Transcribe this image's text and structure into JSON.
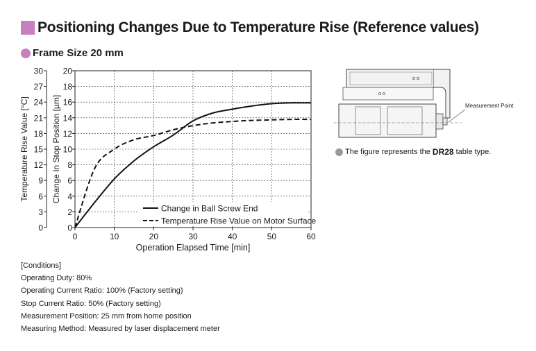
{
  "header": {
    "title": "Positioning Changes Due to Temperature Rise (Reference values)",
    "subtitle": "Frame Size 20 mm",
    "accent_color": "#c77fbd"
  },
  "chart_data": {
    "type": "line",
    "x": [
      0,
      5,
      10,
      15,
      20,
      25,
      30,
      35,
      40,
      45,
      50,
      55,
      60
    ],
    "xlabel": "Operation Elapsed Time [min]",
    "xlim": [
      0,
      60
    ],
    "x_ticks": [
      "0",
      "10",
      "20",
      "30",
      "40",
      "50",
      "60"
    ],
    "y_left": {
      "label": "Temperature Rise Value [°C]",
      "lim": [
        0,
        30
      ],
      "ticks": [
        "0",
        "3",
        "6",
        "9",
        "12",
        "15",
        "18",
        "21",
        "24",
        "27",
        "30"
      ]
    },
    "y_right": {
      "label": "Change In Stop Position [µm]",
      "lim": [
        0,
        20
      ],
      "ticks": [
        "0",
        "2",
        "4",
        "6",
        "8",
        "10",
        "12",
        "14",
        "16",
        "18",
        "20"
      ]
    },
    "series": [
      {
        "name": "Change in Ball Screw End",
        "axis": "right",
        "style": "solid",
        "values": [
          0,
          3.2,
          6.2,
          8.5,
          10.3,
          11.8,
          13.6,
          14.6,
          15.1,
          15.5,
          15.8,
          15.9,
          15.9
        ]
      },
      {
        "name": "Temperature Rise Value on Motor Surface",
        "axis": "left",
        "style": "dashed",
        "values": [
          0,
          11.3,
          15.0,
          16.8,
          17.6,
          18.7,
          19.5,
          20.0,
          20.3,
          20.5,
          20.6,
          20.7,
          20.7
        ]
      }
    ],
    "grid": true,
    "legend_position": "bottom-right"
  },
  "conditions": [
    "[Conditions]",
    "Operating Duty: 80%",
    "Operating Current Ratio: 100% (Factory setting)",
    "Stop Current Ratio: 50% (Factory setting)",
    "Measurement Position:  25 mm from home position",
    "Measuring Method: Measured by laser displacement meter"
  ],
  "figure": {
    "measurement_label": "Measurement Point",
    "caption_pre": "The figure represents the",
    "caption_bold": "DR28",
    "caption_post": "table type."
  }
}
